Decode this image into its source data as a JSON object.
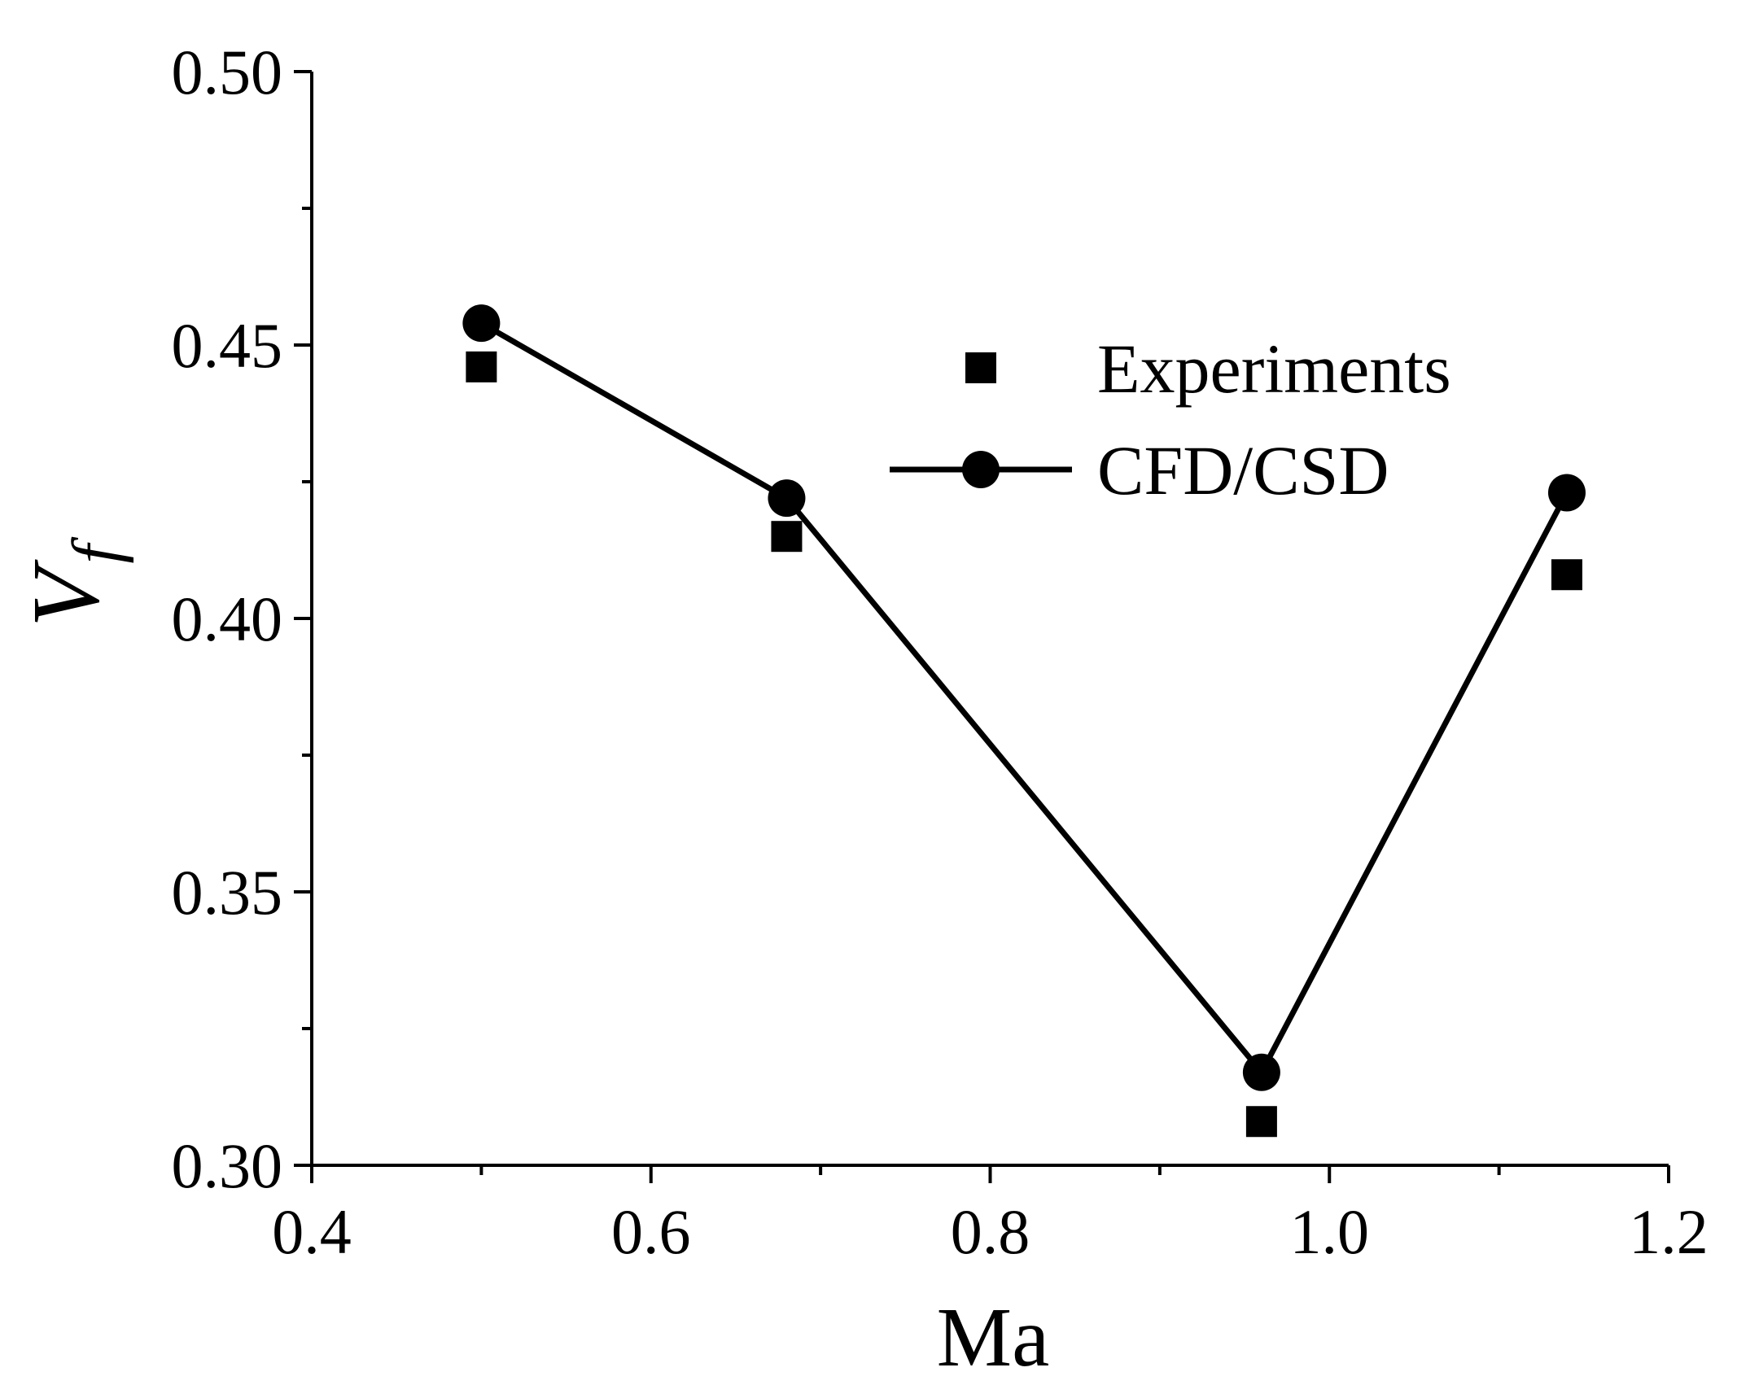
{
  "chart_data": {
    "type": "line",
    "xlabel": "Ma",
    "ylabel": "V",
    "ylabel_subscript": "f",
    "xlim": [
      0.4,
      1.2
    ],
    "ylim": [
      0.3,
      0.5
    ],
    "x_ticks": [
      0.4,
      0.6,
      0.8,
      1.0,
      1.2
    ],
    "x_tick_labels": [
      "0.4",
      "0.6",
      "0.8",
      "1.0",
      "1.2"
    ],
    "x_minor_ticks": [
      0.5,
      0.7,
      0.9,
      1.1
    ],
    "y_ticks": [
      0.3,
      0.35,
      0.4,
      0.45,
      0.5
    ],
    "y_tick_labels": [
      "0.30",
      "0.35",
      "0.40",
      "0.45",
      "0.50"
    ],
    "y_minor_ticks": [
      0.325,
      0.375,
      0.425,
      0.475
    ],
    "grid": false,
    "legend_position": "top-right",
    "series": [
      {
        "name": "Experiments",
        "marker": "square",
        "line": false,
        "x": [
          0.5,
          0.68,
          0.96,
          1.14
        ],
        "y": [
          0.446,
          0.415,
          0.308,
          0.408
        ]
      },
      {
        "name": "CFD/CSD",
        "marker": "circle",
        "line": true,
        "x": [
          0.5,
          0.68,
          0.96,
          1.14
        ],
        "y": [
          0.454,
          0.422,
          0.317,
          0.423
        ]
      }
    ],
    "colors": {
      "ink": "#000000",
      "background": "#ffffff"
    }
  }
}
